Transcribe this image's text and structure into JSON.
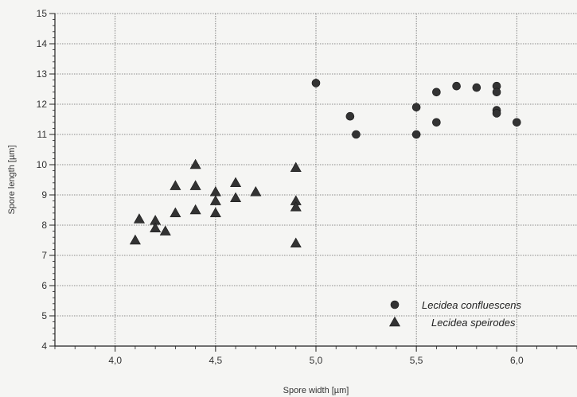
{
  "chart_data": {
    "type": "scatter",
    "xlabel": "Spore width [µm]",
    "ylabel": "Spore length [µm]",
    "xlim": [
      3.7,
      6.3
    ],
    "ylim": [
      4,
      15
    ],
    "xticks": [
      4.0,
      4.5,
      5.0,
      5.5,
      6.0
    ],
    "xtick_labels": [
      "4,0",
      "4,5",
      "5,0",
      "5,5",
      "6,0"
    ],
    "yticks": [
      4,
      5,
      6,
      7,
      8,
      9,
      10,
      11,
      12,
      13,
      14,
      15
    ],
    "ytick_labels": [
      "4",
      "5",
      "6",
      "7",
      "8",
      "9",
      "10",
      "11",
      "12",
      "13",
      "14",
      "15"
    ],
    "grid": true,
    "legend_position": "bottom-right",
    "series": [
      {
        "name": "Lecidea confluescens",
        "marker": "circle",
        "color": "#333333",
        "points": [
          [
            5.0,
            12.7
          ],
          [
            5.17,
            11.6
          ],
          [
            5.2,
            11.0
          ],
          [
            5.5,
            11.9
          ],
          [
            5.5,
            11.0
          ],
          [
            5.6,
            12.4
          ],
          [
            5.6,
            11.4
          ],
          [
            5.7,
            12.6
          ],
          [
            5.8,
            12.55
          ],
          [
            5.9,
            12.6
          ],
          [
            5.9,
            12.4
          ],
          [
            5.9,
            11.8
          ],
          [
            5.9,
            11.7
          ],
          [
            6.0,
            11.4
          ]
        ]
      },
      {
        "name": "Lecidea speirodes",
        "marker": "triangle",
        "color": "#333333",
        "points": [
          [
            4.1,
            7.5
          ],
          [
            4.12,
            8.2
          ],
          [
            4.2,
            8.15
          ],
          [
            4.2,
            7.9
          ],
          [
            4.25,
            7.8
          ],
          [
            4.3,
            9.3
          ],
          [
            4.3,
            8.4
          ],
          [
            4.4,
            10.0
          ],
          [
            4.4,
            9.3
          ],
          [
            4.4,
            8.5
          ],
          [
            4.5,
            9.1
          ],
          [
            4.5,
            8.8
          ],
          [
            4.5,
            8.4
          ],
          [
            4.6,
            9.4
          ],
          [
            4.6,
            8.9
          ],
          [
            4.7,
            9.1
          ],
          [
            4.9,
            9.9
          ],
          [
            4.9,
            8.8
          ],
          [
            4.9,
            8.6
          ],
          [
            4.9,
            7.4
          ]
        ]
      }
    ]
  }
}
